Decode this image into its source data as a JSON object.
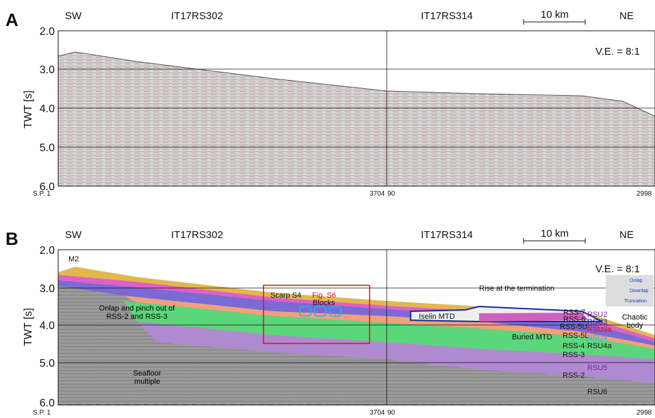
{
  "panel_a": {
    "label": "A",
    "headers": [
      "SW",
      "IT17RS302",
      "IT17RS314",
      "10 km",
      "NE"
    ],
    "ve": "V.E. = 8:1",
    "axis_label": "TWT [s]",
    "yticks": [
      "2.0",
      "3.0",
      "4.0",
      "5.0",
      "6.0"
    ],
    "shot_points": [
      "S.P. 1",
      "3704",
      "90",
      "2998"
    ]
  },
  "panel_b": {
    "label": "B",
    "headers": [
      "SW",
      "IT17RS302",
      "IT17RS314",
      "10 km",
      "NE"
    ],
    "ve": "V.E. = 8:1",
    "axis_label": "TWT [s]",
    "yticks": [
      "2.0",
      "3.0",
      "4.0",
      "5.0",
      "6.0"
    ],
    "shot_points": [
      "S.P. 1",
      "3704",
      "90",
      "2998"
    ],
    "annotations": {
      "m2": "M2",
      "scarp": "Scarp S4",
      "fig": "Fig. S6",
      "blocks": "Blocks",
      "rise": "Rise at the termination",
      "iselin": "Iselin MTD",
      "onlap": "Onlap and pinch out of RSS-2 and RSS-3",
      "multiple": "Seafloor multiple",
      "buried": "Buried MTD",
      "chaotic": "Chaotic body"
    },
    "units": [
      "RSS-7",
      "RSS-6",
      "RSS-5U",
      "RSS-5L",
      "RSS-4",
      "RSS-3",
      "RSS-2"
    ],
    "surfaces": [
      "RSU2",
      "RSU3",
      "RSU3a",
      "RSU4",
      "RSU4a",
      "RSU5",
      "RSU6"
    ],
    "legend": [
      "Onlap",
      "Downlap",
      "Truncation"
    ]
  }
}
